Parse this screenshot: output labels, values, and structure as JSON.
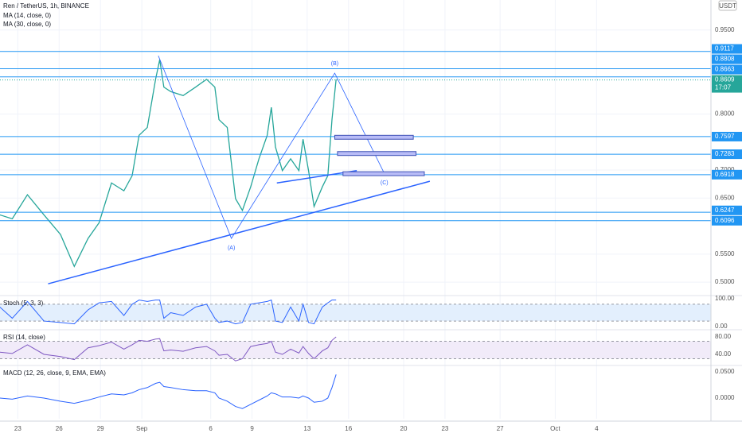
{
  "chart_data": [
    {
      "type": "line",
      "title": "Ren / TetherUS, 1h, BINANCE",
      "annotations": [
        "MA (14, close, 0)",
        "MA (30, close, 0)"
      ],
      "currency": "USDT",
      "x": [
        -1.3,
        -0.4,
        0.7,
        1.9,
        3.1,
        4.1,
        5.1,
        5.9,
        6.8,
        7.7,
        8.3,
        8.8,
        9.4,
        10.0,
        10.3,
        10.6,
        11.1,
        12.0,
        12.9,
        13.7,
        14.3,
        14.6,
        15.2,
        15.8,
        16.3,
        16.9,
        17.5,
        18.1,
        18.4,
        18.7,
        19.2,
        19.8,
        20.4,
        20.7,
        21.1,
        21.5,
        22.1,
        22.5,
        22.8,
        23.1
      ],
      "values": [
        0.62,
        0.613,
        0.656,
        0.62,
        0.585,
        0.528,
        0.578,
        0.606,
        0.677,
        0.663,
        0.69,
        0.762,
        0.776,
        0.862,
        0.897,
        0.848,
        0.84,
        0.833,
        0.848,
        0.862,
        0.848,
        0.79,
        0.776,
        0.649,
        0.628,
        0.67,
        0.72,
        0.762,
        0.812,
        0.741,
        0.699,
        0.72,
        0.699,
        0.755,
        0.699,
        0.635,
        0.67,
        0.69,
        0.79,
        0.862
      ],
      "color": "#26a69a",
      "xlim": [
        -1.29,
        50.3
      ],
      "xticks": [
        {
          "value": 0,
          "label": "23"
        },
        {
          "value": 3,
          "label": "26"
        },
        {
          "value": 6,
          "label": "29"
        },
        {
          "value": 9,
          "label": "Sep"
        },
        {
          "value": 14,
          "label": "6"
        },
        {
          "value": 17,
          "label": "9"
        },
        {
          "value": 21,
          "label": "13"
        },
        {
          "value": 24,
          "label": "16"
        },
        {
          "value": 28,
          "label": "20"
        },
        {
          "value": 31,
          "label": "23"
        },
        {
          "value": 35,
          "label": "27"
        },
        {
          "value": 39,
          "label": "Oct"
        },
        {
          "value": 42,
          "label": "4"
        }
      ],
      "ylim": [
        0.476,
        1.0035
      ],
      "yticks": [
        {
          "value": 0.95,
          "label": "0.9500"
        },
        {
          "value": 0.8,
          "label": "0.8000"
        },
        {
          "value": 0.7,
          "label": "0.7000"
        },
        {
          "value": 0.65,
          "label": "0.6500"
        },
        {
          "value": 0.55,
          "label": "0.5500"
        },
        {
          "value": 0.5,
          "label": "0.5000"
        }
      ],
      "grid": true,
      "price_levels": [
        0.9117,
        0.8808,
        0.8663,
        0.7597,
        0.7283,
        0.6918,
        0.6247,
        0.6096
      ],
      "level_color": "#2196f3",
      "current_price": {
        "value": 0.8609,
        "countdown": "17:07",
        "color": "#26a69a"
      },
      "drawings": {
        "color": "#2962ff",
        "trendlines": [
          [
            [
              2.2,
              0.497
            ],
            [
              29.9,
              0.68
            ]
          ],
          [
            [
              18.8,
              0.677
            ],
            [
              24.6,
              0.699
            ]
          ]
        ],
        "wave": [
          [
            10.2,
            0.904
          ],
          [
            15.5,
            0.578
          ],
          [
            23.0,
            0.873
          ],
          [
            26.6,
            0.694
          ]
        ],
        "wave_labels": [
          "(A)",
          "(B)",
          "(C)"
        ],
        "boxes": [
          [
            23.0,
            28.7,
            0.762,
            0.755
          ],
          [
            23.2,
            28.9,
            0.733,
            0.726
          ],
          [
            23.6,
            29.5,
            0.697,
            0.69
          ]
        ],
        "box_color": "#b8bcf7"
      }
    },
    {
      "type": "line",
      "title": "Stoch (5, 3, 3)",
      "color": "#2962ff",
      "values": [
        70,
        30,
        90,
        20,
        15,
        10,
        60,
        85,
        90,
        40,
        80,
        95,
        90,
        95,
        95,
        30,
        50,
        40,
        70,
        80,
        30,
        15,
        20,
        10,
        15,
        80,
        85,
        90,
        95,
        20,
        15,
        70,
        20,
        80,
        15,
        10,
        70,
        85,
        95,
        95
      ],
      "ylim": [
        -11,
        111
      ],
      "yticks": [
        {
          "value": 100,
          "label": "100.00"
        },
        {
          "value": 0,
          "label": "0.00"
        }
      ],
      "bands": [
        20,
        80
      ],
      "band_color": "#e3effd"
    },
    {
      "type": "line",
      "title": "RSI (14, close)",
      "color": "#7e57c2",
      "values": [
        45,
        42,
        62,
        40,
        35,
        28,
        55,
        60,
        68,
        52,
        62,
        72,
        70,
        75,
        76,
        48,
        50,
        47,
        55,
        58,
        48,
        38,
        40,
        25,
        30,
        58,
        62,
        65,
        70,
        45,
        40,
        52,
        43,
        58,
        42,
        30,
        48,
        55,
        72,
        80
      ],
      "ylim": [
        14.5,
        96.4
      ],
      "yticks": [
        {
          "value": 80,
          "label": "80.00"
        },
        {
          "value": 40,
          "label": "40.00"
        }
      ],
      "bands": [
        30,
        70
      ],
      "band_color": "#f1ebf9"
    },
    {
      "type": "line",
      "title": "MACD (12, 26, close, 9, EMA, EMA)",
      "color": "#2962ff",
      "values": [
        0.0,
        -0.002,
        0.004,
        0.0,
        -0.006,
        -0.01,
        -0.004,
        0.002,
        0.008,
        0.006,
        0.01,
        0.016,
        0.02,
        0.028,
        0.03,
        0.022,
        0.02,
        0.016,
        0.014,
        0.014,
        0.01,
        0.0,
        -0.006,
        -0.016,
        -0.02,
        -0.012,
        -0.004,
        0.004,
        0.01,
        0.008,
        0.002,
        0.002,
        0.0,
        0.004,
        0.0,
        -0.008,
        -0.006,
        0.0,
        0.02,
        0.045
      ],
      "ylim": [
        -0.0394,
        0.0621
      ],
      "yticks": [
        {
          "value": 0.05,
          "label": "0.0500"
        },
        {
          "value": 0,
          "label": "0.0000"
        }
      ]
    }
  ]
}
